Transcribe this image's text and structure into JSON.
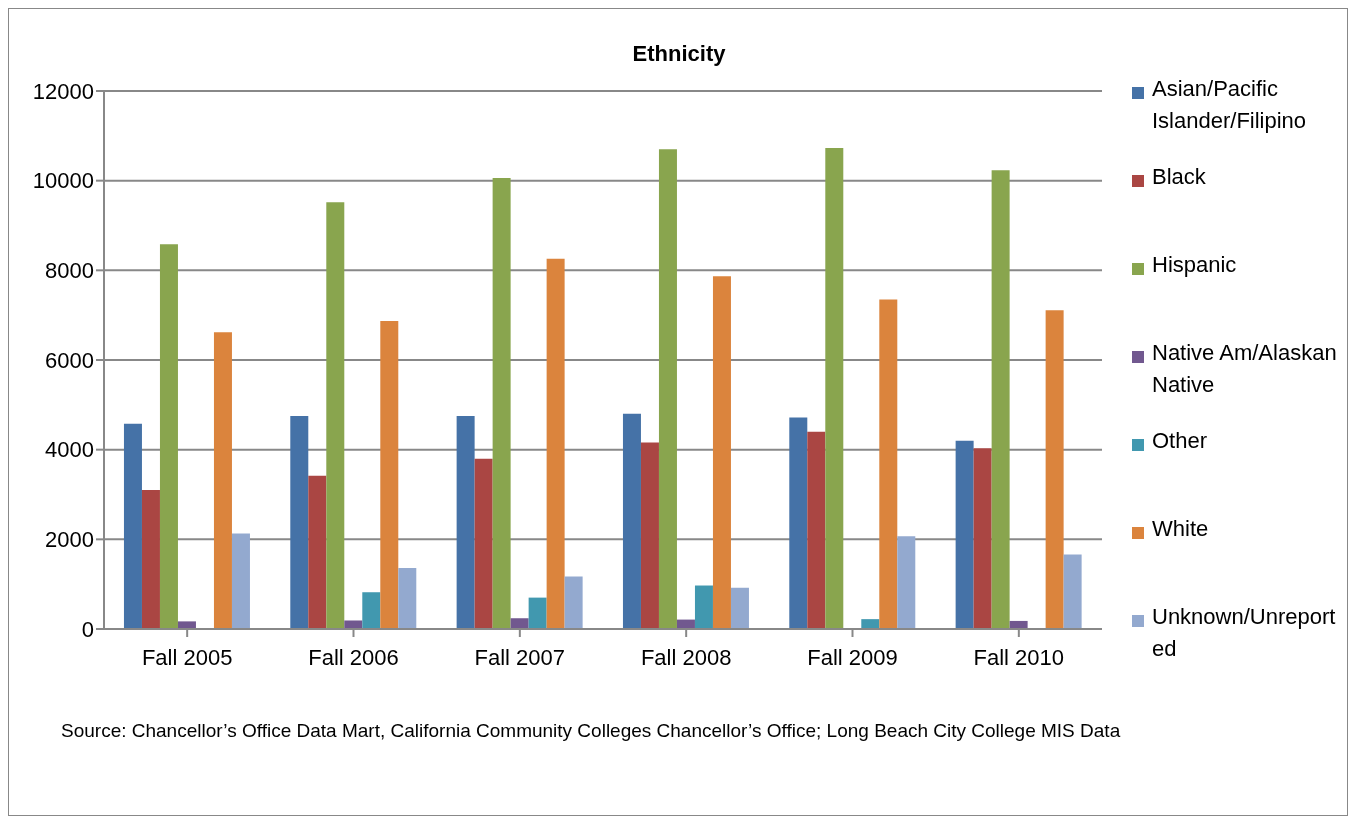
{
  "chart_data": {
    "type": "bar",
    "title": "Ethnicity",
    "categories": [
      "Fall 2005",
      "Fall 2006",
      "Fall 2007",
      "Fall 2008",
      "Fall 2009",
      "Fall 2010"
    ],
    "series": [
      {
        "name": "Asian/Pacific Islander/Filipino",
        "color": "#4572a7",
        "values": [
          4580,
          4750,
          4750,
          4800,
          4720,
          4200
        ]
      },
      {
        "name": "Black",
        "color": "#aa4643",
        "values": [
          3100,
          3420,
          3800,
          4160,
          4400,
          4030
        ]
      },
      {
        "name": "Hispanic",
        "color": "#89a54e",
        "values": [
          8580,
          9520,
          10060,
          10700,
          10730,
          10230
        ]
      },
      {
        "name": "Native Am/Alaskan Native",
        "color": "#71588f",
        "values": [
          170,
          190,
          240,
          210,
          0,
          180
        ]
      },
      {
        "name": "Other",
        "color": "#4198af",
        "values": [
          0,
          820,
          700,
          970,
          220,
          0
        ]
      },
      {
        "name": "White",
        "color": "#db843d",
        "values": [
          6620,
          6870,
          8260,
          7870,
          7350,
          7110
        ]
      },
      {
        "name": "Unknown/Unreported",
        "color": "#93a9cf",
        "values": [
          2130,
          1360,
          1170,
          920,
          2070,
          1660
        ]
      }
    ],
    "ylim": [
      0,
      12000
    ],
    "yticks": [
      0,
      2000,
      4000,
      6000,
      8000,
      10000,
      12000
    ],
    "grid": "y",
    "legend": "right",
    "annotations": [
      "Source: Chancellor’s Office Data Mart, California Community Colleges Chancellor’s Office;  Long Beach City College MIS Data"
    ]
  }
}
